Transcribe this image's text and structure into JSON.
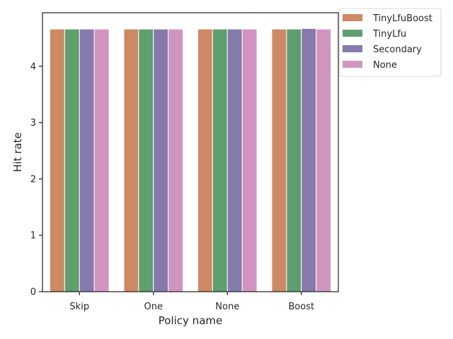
{
  "chart_data": {
    "type": "bar",
    "title": "",
    "xlabel": "Policy name",
    "ylabel": "Hit rate",
    "categories": [
      "Skip",
      "One",
      "None",
      "Boost"
    ],
    "ylim": [
      0,
      4.95
    ],
    "yticks": [
      0,
      1,
      2,
      3,
      4
    ],
    "grid": false,
    "legend": "outside-top-right",
    "series": [
      {
        "name": "TinyLfuBoost",
        "color": "#cc8963",
        "values": [
          4.66,
          4.66,
          4.66,
          4.66
        ]
      },
      {
        "name": "TinyLfu",
        "color": "#5f9e6e",
        "values": [
          4.66,
          4.66,
          4.66,
          4.66
        ]
      },
      {
        "name": "Secondary",
        "color": "#857aab",
        "values": [
          4.66,
          4.66,
          4.66,
          4.67
        ]
      },
      {
        "name": "None",
        "color": "#d095bf",
        "values": [
          4.66,
          4.66,
          4.66,
          4.66
        ]
      }
    ]
  }
}
